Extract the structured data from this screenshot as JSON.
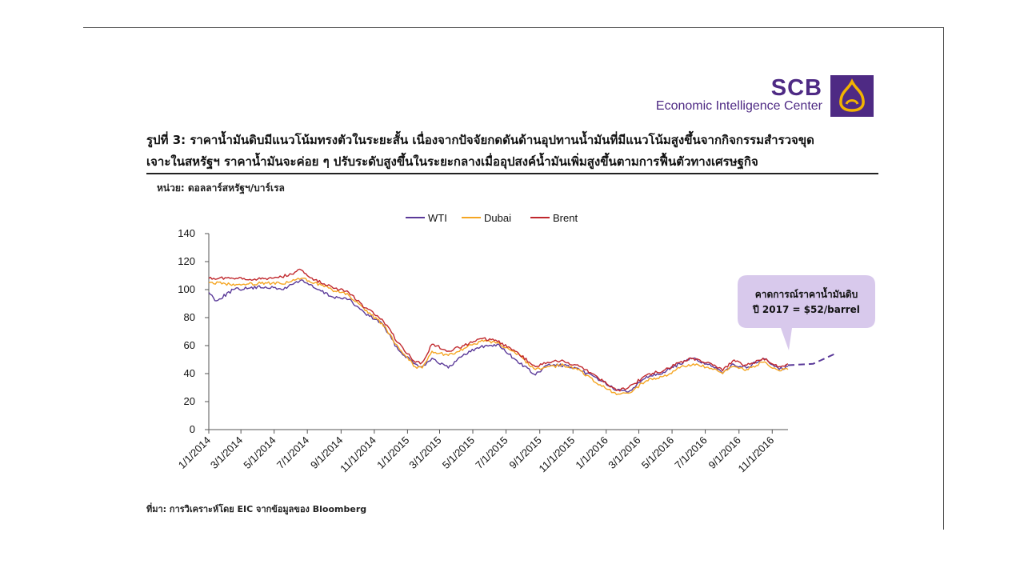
{
  "brand": {
    "name": "SCB",
    "subtitle": "Economic Intelligence Center"
  },
  "caption": {
    "line1": "รูปที่ 3: ราคาน้ำมันดิบมีแนวโน้มทรงตัวในระยะสั้น เนื่องจากปัจจัยกดดันด้านอุปทานน้ำมันที่มีแนวโน้มสูงขึ้นจากกิจกรรมสำรวจขุด",
    "line2": "เจาะในสหรัฐฯ ราคาน้ำมันจะค่อย ๆ ปรับระดับสูงขึ้นในระยะกลางเมื่ออุปสงค์น้ำมันเพิ่มสูงขึ้นตามการฟื้นตัวทางเศรษฐกิจ"
  },
  "unit_label": "หน่วย: ดอลลาร์สหรัฐฯ/บาร์เรล",
  "source_label": "ที่มา: การวิเคราะห์โดย EIC จากข้อมูลของ Bloomberg",
  "colors": {
    "brand": "#4e2a84",
    "logo_gold": "#f2b300",
    "callout_bg": "#d8c9ec"
  },
  "chart_data": {
    "type": "line",
    "ylim": [
      0,
      140
    ],
    "yticks": [
      0,
      20,
      40,
      60,
      80,
      100,
      120,
      140
    ],
    "xticks": [
      "1/1/2014",
      "3/1/2014",
      "5/1/2014",
      "7/1/2014",
      "9/1/2014",
      "11/1/2014",
      "1/1/2015",
      "3/1/2015",
      "5/1/2015",
      "7/1/2015",
      "9/1/2015",
      "11/1/2015",
      "1/1/2016",
      "3/1/2016",
      "5/1/2016",
      "7/1/2016",
      "9/1/2016",
      "11/1/2016"
    ],
    "legend_position": "top",
    "series": [
      {
        "name": "WTI",
        "color": "#5b3a99",
        "x": [
          "2014-01-01",
          "2014-01-15",
          "2014-02-15",
          "2014-03-15",
          "2014-04-15",
          "2014-05-15",
          "2014-06-20",
          "2014-07-15",
          "2014-08-15",
          "2014-09-15",
          "2014-10-15",
          "2014-11-15",
          "2014-12-15",
          "2015-01-15",
          "2015-01-28",
          "2015-02-15",
          "2015-03-17",
          "2015-04-15",
          "2015-05-15",
          "2015-06-15",
          "2015-07-15",
          "2015-08-24",
          "2015-09-15",
          "2015-10-15",
          "2015-11-15",
          "2015-12-15",
          "2016-01-20",
          "2016-02-11",
          "2016-03-15",
          "2016-04-15",
          "2016-05-15",
          "2016-06-09",
          "2016-07-15",
          "2016-08-02",
          "2016-08-20",
          "2016-09-15",
          "2016-10-15",
          "2016-11-14",
          "2016-11-30"
        ],
        "y": [
          98,
          92,
          100,
          101,
          102,
          100,
          107,
          101,
          95,
          93,
          83,
          76,
          57,
          47,
          45,
          51,
          44,
          54,
          59,
          61,
          51,
          39,
          46,
          46,
          42,
          37,
          28,
          27,
          38,
          41,
          47,
          51,
          45,
          40,
          47,
          44,
          51,
          43,
          45
        ]
      },
      {
        "name": "Dubai",
        "color": "#f5a623",
        "x": [
          "2014-01-01",
          "2014-02-15",
          "2014-03-15",
          "2014-04-15",
          "2014-05-15",
          "2014-06-20",
          "2014-07-15",
          "2014-08-15",
          "2014-09-15",
          "2014-10-15",
          "2014-11-15",
          "2014-12-15",
          "2015-01-15",
          "2015-01-28",
          "2015-02-15",
          "2015-03-17",
          "2015-04-15",
          "2015-05-15",
          "2015-06-15",
          "2015-07-15",
          "2015-08-24",
          "2015-09-15",
          "2015-10-15",
          "2015-11-15",
          "2015-12-15",
          "2016-01-20",
          "2016-02-11",
          "2016-03-15",
          "2016-04-15",
          "2016-05-15",
          "2016-06-09",
          "2016-07-15",
          "2016-08-02",
          "2016-08-20",
          "2016-09-15",
          "2016-10-15",
          "2016-11-14",
          "2016-11-30"
        ],
        "y": [
          105,
          104,
          104,
          105,
          104,
          108,
          105,
          100,
          96,
          85,
          76,
          59,
          45,
          44,
          56,
          53,
          58,
          63,
          62,
          56,
          43,
          45,
          46,
          42,
          33,
          25,
          26,
          35,
          38,
          44,
          47,
          43,
          40,
          45,
          43,
          48,
          42,
          43
        ]
      },
      {
        "name": "Brent",
        "color": "#c0282d",
        "x": [
          "2014-01-01",
          "2014-02-15",
          "2014-03-15",
          "2014-04-15",
          "2014-05-15",
          "2014-06-20",
          "2014-07-15",
          "2014-08-15",
          "2014-09-15",
          "2014-10-15",
          "2014-11-15",
          "2014-12-15",
          "2015-01-15",
          "2015-01-28",
          "2015-02-15",
          "2015-03-17",
          "2015-04-15",
          "2015-05-15",
          "2015-06-15",
          "2015-07-15",
          "2015-08-24",
          "2015-09-15",
          "2015-10-15",
          "2015-11-15",
          "2015-12-15",
          "2016-01-20",
          "2016-02-11",
          "2016-03-15",
          "2016-04-15",
          "2016-05-15",
          "2016-06-09",
          "2016-07-15",
          "2016-08-02",
          "2016-08-20",
          "2016-09-15",
          "2016-10-15",
          "2016-11-14",
          "2016-11-30"
        ],
        "y": [
          108,
          108,
          107,
          108,
          109,
          114,
          107,
          102,
          98,
          87,
          79,
          62,
          48,
          48,
          61,
          56,
          60,
          65,
          63,
          57,
          45,
          48,
          49,
          45,
          38,
          28,
          30,
          39,
          42,
          48,
          51,
          46,
          42,
          49,
          46,
          51,
          45,
          47
        ]
      },
      {
        "name": "",
        "color": "#5b3a99",
        "dashed": true,
        "x": [
          "2016-11-30",
          "2017-01-15",
          "2017-03-01"
        ],
        "y": [
          46,
          47,
          55
        ]
      }
    ],
    "annotation": {
      "line1": "คาดการณ์ราคาน้ำมันดิบ",
      "line2": "ปี 2017 = $52/barrel"
    }
  }
}
